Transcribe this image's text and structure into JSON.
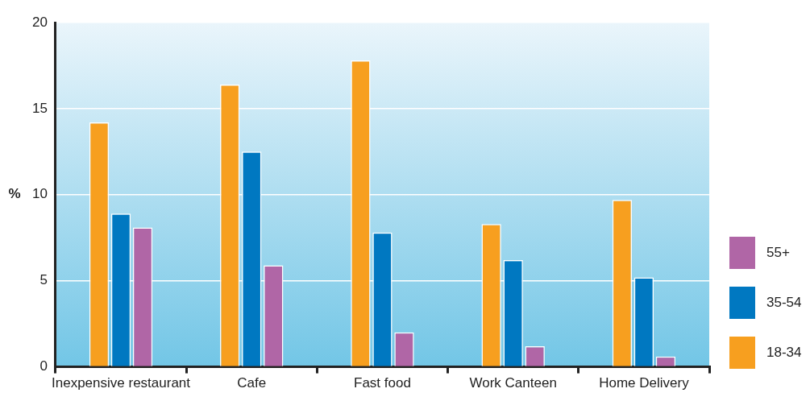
{
  "chart_data": {
    "type": "bar",
    "ylabel": "%",
    "categories": [
      "Inexpensive restaurant",
      "Cafe",
      "Fast food",
      "Work Canteen",
      "Home Delivery"
    ],
    "series": [
      {
        "name": "18-34",
        "color": "#f79f1f",
        "values": [
          14.2,
          16.4,
          17.8,
          8.3,
          9.7
        ]
      },
      {
        "name": "35-54",
        "color": "#0078c1",
        "values": [
          8.9,
          12.5,
          7.8,
          6.2,
          5.2
        ]
      },
      {
        "name": "55+",
        "color": "#b066a6",
        "values": [
          8.1,
          5.9,
          2.0,
          1.2,
          0.6
        ]
      }
    ],
    "ylim": [
      0,
      20
    ],
    "yticks": [
      0,
      5,
      10,
      15,
      20
    ],
    "grid": "y",
    "legend": "bottom right"
  }
}
